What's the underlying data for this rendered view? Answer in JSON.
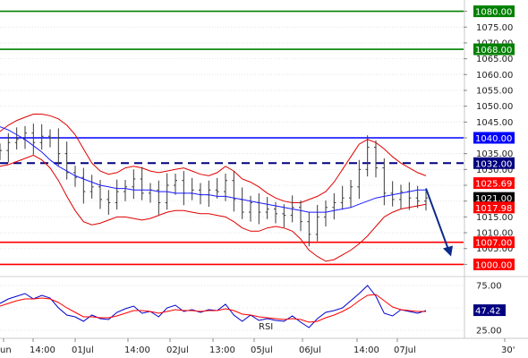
{
  "chart_data": [
    {
      "type": "candlestick",
      "panel": "price",
      "ylim": [
        997,
        1083
      ],
      "grid": true,
      "y_ticks": [
        1000,
        1005,
        1010,
        1015,
        1020,
        1025,
        1030,
        1035,
        1040,
        1045,
        1050,
        1055,
        1060,
        1065,
        1070,
        1075,
        1080
      ],
      "y_tick_labels": [
        "1000.00",
        "1005.00",
        "1010.00",
        "1015.00",
        "1020.00",
        "1025.00",
        "1030.00",
        "1035.00",
        "1040.00",
        "1045.00",
        "1050.00",
        "1055.00",
        "1060.00",
        "1065.00",
        "1070.00",
        "1075.00",
        "1080.00"
      ],
      "x_tick_labels": [
        "un",
        "14:00",
        "01Jul",
        "14:00",
        "02Jul",
        "13:00",
        "05Jul",
        "06Jul",
        "14:00",
        "07Jul",
        "30'"
      ],
      "levels": [
        {
          "value": 1080.0,
          "label": "1080.00",
          "color": "#008000",
          "style": "solid"
        },
        {
          "value": 1068.0,
          "label": "1068.00",
          "color": "#008000",
          "style": "solid"
        },
        {
          "value": 1040.0,
          "label": "1040.00",
          "color": "#0000ff",
          "style": "solid"
        },
        {
          "value": 1032.0,
          "label": "1032.00",
          "color": "#000080",
          "style": "dashed"
        },
        {
          "value": 1007.0,
          "label": "1007.00",
          "color": "#ff0000",
          "style": "solid"
        },
        {
          "value": 1000.0,
          "label": "1000.00",
          "color": "#ff0000",
          "style": "solid"
        }
      ],
      "value_tags": [
        {
          "value": 1025.69,
          "label": "1025.69",
          "color": "#ff0000"
        },
        {
          "value": 1021.0,
          "label": "1021.00",
          "color": "#000000"
        },
        {
          "value": 1017.98,
          "label": "1017.98",
          "color": "#ff0000"
        }
      ],
      "close": [
        1036.0,
        1038.5,
        1039.5,
        1041.5,
        1038.5,
        1040.5,
        1040.0,
        1035.0,
        1029.0,
        1027.5,
        1023.0,
        1024.5,
        1020.5,
        1019.5,
        1023.0,
        1024.5,
        1027.0,
        1022.5,
        1023.5,
        1019.5,
        1025.0,
        1026.5,
        1022.5,
        1023.5,
        1022.0,
        1023.5,
        1023.0,
        1026.5,
        1020.5,
        1016.5,
        1019.5,
        1016.5,
        1017.5,
        1016.0,
        1015.5,
        1018.0,
        1013.5,
        1009.5,
        1015.0,
        1018.0,
        1019.5,
        1021.0,
        1024.5,
        1030.0,
        1037.0,
        1030.5,
        1022.5,
        1020.5,
        1023.0,
        1021.0,
        1020.0,
        1021.0
      ],
      "ma_line": [
        1043.5,
        1042.5,
        1041.0,
        1039.5,
        1037.5,
        1035.5,
        1033.0,
        1031.0,
        1029.5,
        1028.0,
        1027.0,
        1026.0,
        1025.0,
        1024.5,
        1024.0,
        1024.0,
        1023.5,
        1023.5,
        1023.5,
        1023.0,
        1023.0,
        1022.5,
        1022.5,
        1022.5,
        1022.0,
        1022.0,
        1021.5,
        1021.5,
        1021.0,
        1020.5,
        1020.0,
        1019.5,
        1019.0,
        1018.5,
        1018.0,
        1017.5,
        1017.0,
        1016.5,
        1016.5,
        1016.5,
        1017.0,
        1017.5,
        1018.0,
        1019.0,
        1020.0,
        1021.0,
        1021.5,
        1022.0,
        1022.5,
        1023.0,
        1023.5,
        1023.5
      ],
      "bands_upper": [
        1042.0,
        1044.0,
        1045.5,
        1046.5,
        1047.5,
        1047.5,
        1047.0,
        1046.0,
        1044.0,
        1041.0,
        1036.5,
        1032.0,
        1029.5,
        1028.5,
        1029.0,
        1030.5,
        1031.0,
        1030.5,
        1029.5,
        1029.0,
        1029.5,
        1030.0,
        1030.5,
        1029.5,
        1028.5,
        1028.0,
        1029.0,
        1031.0,
        1029.5,
        1027.0,
        1026.0,
        1024.5,
        1022.5,
        1021.0,
        1020.0,
        1019.5,
        1019.5,
        1020.5,
        1021.5,
        1023.0,
        1026.0,
        1030.0,
        1034.0,
        1038.0,
        1039.5,
        1038.5,
        1036.5,
        1034.0,
        1032.0,
        1030.5,
        1029.0,
        1028.0
      ],
      "bands_lower": [
        1031.0,
        1031.5,
        1032.5,
        1033.5,
        1034.5,
        1033.0,
        1030.5,
        1026.5,
        1021.5,
        1017.0,
        1013.5,
        1012.5,
        1013.0,
        1014.0,
        1015.0,
        1015.0,
        1014.5,
        1014.0,
        1014.5,
        1015.5,
        1016.5,
        1017.0,
        1017.0,
        1016.5,
        1016.0,
        1016.0,
        1015.5,
        1015.0,
        1013.5,
        1011.5,
        1010.5,
        1010.5,
        1011.5,
        1012.0,
        1011.5,
        1010.5,
        1008.0,
        1004.5,
        1002.5,
        1001.0,
        1001.5,
        1003.0,
        1004.5,
        1006.5,
        1009.0,
        1012.0,
        1015.0,
        1016.5,
        1017.5,
        1018.0,
        1018.5,
        1019.0
      ],
      "forecast_arrow": {
        "from": {
          "index": 51,
          "value": 1024.0
        },
        "to": {
          "index": 54,
          "value": 1002.5
        },
        "color": "#0b2a8a"
      }
    },
    {
      "type": "line",
      "panel": "rsi",
      "title": "RSI",
      "ylim": [
        22,
        82
      ],
      "y_ticks": [
        25,
        50,
        75
      ],
      "y_tick_labels": [
        "25.00",
        "50.00",
        "75.00"
      ],
      "value_tags": [
        {
          "value": 47.42,
          "label": "47.42",
          "color": "#000080"
        }
      ],
      "series": [
        {
          "color": "#0000cc",
          "values": [
            55,
            60,
            63,
            66,
            60,
            64,
            61,
            50,
            42,
            40,
            35,
            42,
            38,
            37,
            45,
            49,
            52,
            44,
            46,
            40,
            50,
            53,
            46,
            48,
            45,
            48,
            47,
            54,
            42,
            35,
            42,
            36,
            38,
            36,
            35,
            41,
            34,
            28,
            38,
            45,
            47,
            50,
            58,
            66,
            75,
            63,
            44,
            41,
            48,
            46,
            44,
            47
          ]
        },
        {
          "color": "#ff0000",
          "values": [
            52,
            55,
            58,
            60,
            60,
            61,
            60,
            56,
            50,
            45,
            40,
            40,
            39,
            39,
            41,
            44,
            47,
            47,
            46,
            44,
            46,
            48,
            47,
            47,
            46,
            47,
            47,
            49,
            47,
            43,
            42,
            40,
            39,
            38,
            37,
            38,
            37,
            34,
            35,
            39,
            42,
            46,
            51,
            58,
            64,
            65,
            58,
            51,
            48,
            47,
            46,
            46
          ]
        }
      ]
    }
  ]
}
